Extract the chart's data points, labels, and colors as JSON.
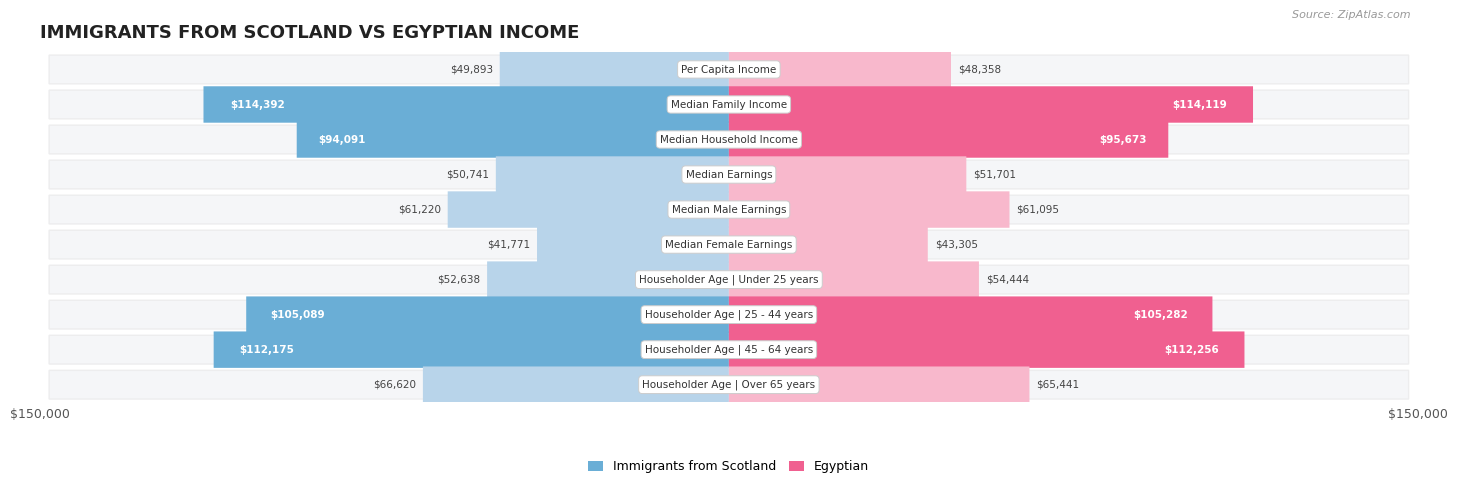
{
  "title": "IMMIGRANTS FROM SCOTLAND VS EGYPTIAN INCOME",
  "source": "Source: ZipAtlas.com",
  "categories": [
    "Per Capita Income",
    "Median Family Income",
    "Median Household Income",
    "Median Earnings",
    "Median Male Earnings",
    "Median Female Earnings",
    "Householder Age | Under 25 years",
    "Householder Age | 25 - 44 years",
    "Householder Age | 45 - 64 years",
    "Householder Age | Over 65 years"
  ],
  "scotland_values": [
    49893,
    114392,
    94091,
    50741,
    61220,
    41771,
    52638,
    105089,
    112175,
    66620
  ],
  "egyptian_values": [
    48358,
    114119,
    95673,
    51701,
    61095,
    43305,
    54444,
    105282,
    112256,
    65441
  ],
  "scotland_labels": [
    "$49,893",
    "$114,392",
    "$94,091",
    "$50,741",
    "$61,220",
    "$41,771",
    "$52,638",
    "$105,089",
    "$112,175",
    "$66,620"
  ],
  "egyptian_labels": [
    "$48,358",
    "$114,119",
    "$95,673",
    "$51,701",
    "$61,095",
    "$43,305",
    "$54,444",
    "$105,282",
    "$112,256",
    "$65,441"
  ],
  "scotland_color_light": "#b8d4ea",
  "scotland_color_dark": "#6aaed6",
  "egyptian_color_light": "#f8b8cc",
  "egyptian_color_dark": "#f06090",
  "max_value": 150000,
  "threshold": 70000,
  "legend_scotland": "Immigrants from Scotland",
  "legend_egyptian": "Egyptian",
  "xlabel_left": "$150,000",
  "xlabel_right": "$150,000",
  "row_bg_color": "#ededee",
  "row_inner_color": "#f5f6f8",
  "title_fontsize": 13,
  "source_fontsize": 8,
  "bar_label_fontsize": 7.5,
  "cat_label_fontsize": 7.5
}
